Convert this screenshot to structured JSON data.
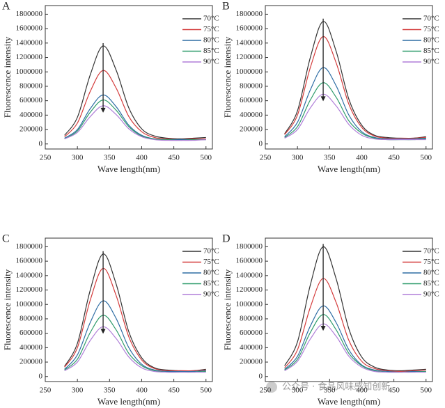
{
  "chart_data": [
    {
      "type": "line",
      "label": "A",
      "xlabel": "Wave length(nm)",
      "ylabel": "Fluorescence intensity",
      "x": [
        280,
        300,
        320,
        340,
        360,
        380,
        400,
        420,
        440,
        460,
        480,
        500
      ],
      "xlim": [
        250,
        510
      ],
      "xticks": [
        250,
        300,
        350,
        400,
        450,
        500
      ],
      "ylim": [
        -70000,
        1920000
      ],
      "yticks": [
        0,
        200000,
        400000,
        600000,
        800000,
        1000000,
        1200000,
        1400000,
        1600000,
        1800000
      ],
      "series": [
        {
          "name": "70°C",
          "color": "#333333",
          "values": [
            120000,
            370000,
            960000,
            1360000,
            1030000,
            500000,
            210000,
            110000,
            80000,
            70000,
            80000,
            90000
          ]
        },
        {
          "name": "75°C",
          "color": "#d43c3c",
          "values": [
            100000,
            290000,
            730000,
            1020000,
            780000,
            380000,
            170000,
            90000,
            70000,
            60000,
            70000,
            70000
          ]
        },
        {
          "name": "80°C",
          "color": "#2e6da4",
          "values": [
            80000,
            200000,
            490000,
            680000,
            520000,
            260000,
            120000,
            70000,
            60000,
            60000,
            60000,
            60000
          ]
        },
        {
          "name": "85°C",
          "color": "#2e9b6b",
          "values": [
            70000,
            180000,
            440000,
            610000,
            470000,
            240000,
            110000,
            70000,
            60000,
            50000,
            60000,
            60000
          ]
        },
        {
          "name": "90°C",
          "color": "#b07fd8",
          "values": [
            70000,
            160000,
            380000,
            530000,
            410000,
            210000,
            100000,
            60000,
            50000,
            50000,
            50000,
            60000
          ]
        }
      ]
    },
    {
      "type": "line",
      "label": "B",
      "xlabel": "Wave length(nm)",
      "ylabel": "Fluorescence intensity",
      "x": [
        280,
        300,
        320,
        340,
        360,
        380,
        400,
        420,
        440,
        460,
        480,
        500
      ],
      "xlim": [
        250,
        510
      ],
      "xticks": [
        250,
        300,
        350,
        400,
        450,
        500
      ],
      "ylim": [
        -70000,
        1920000
      ],
      "yticks": [
        0,
        200000,
        400000,
        600000,
        800000,
        1000000,
        1200000,
        1400000,
        1600000,
        1800000
      ],
      "series": [
        {
          "name": "70°C",
          "color": "#333333",
          "values": [
            140000,
            460000,
            1200000,
            1700000,
            1290000,
            620000,
            260000,
            120000,
            90000,
            80000,
            80000,
            100000
          ]
        },
        {
          "name": "75°C",
          "color": "#d43c3c",
          "values": [
            130000,
            400000,
            1060000,
            1490000,
            1130000,
            550000,
            230000,
            110000,
            80000,
            80000,
            80000,
            90000
          ]
        },
        {
          "name": "80°C",
          "color": "#2e6da4",
          "values": [
            100000,
            300000,
            750000,
            1060000,
            810000,
            400000,
            170000,
            90000,
            70000,
            70000,
            70000,
            80000
          ]
        },
        {
          "name": "85°C",
          "color": "#2e9b6b",
          "values": [
            90000,
            240000,
            610000,
            850000,
            650000,
            320000,
            150000,
            80000,
            60000,
            60000,
            60000,
            70000
          ]
        },
        {
          "name": "90°C",
          "color": "#b07fd8",
          "values": [
            80000,
            200000,
            500000,
            690000,
            530000,
            270000,
            120000,
            70000,
            60000,
            60000,
            60000,
            60000
          ]
        }
      ]
    },
    {
      "type": "line",
      "label": "C",
      "xlabel": "Wave length(nm)",
      "ylabel": "Fluorescence intensity",
      "x": [
        280,
        300,
        320,
        340,
        360,
        380,
        400,
        420,
        440,
        460,
        480,
        500
      ],
      "xlim": [
        250,
        510
      ],
      "xticks": [
        250,
        300,
        350,
        400,
        450,
        500
      ],
      "ylim": [
        -70000,
        1920000
      ],
      "yticks": [
        0,
        200000,
        400000,
        600000,
        800000,
        1000000,
        1200000,
        1400000,
        1600000,
        1800000
      ],
      "series": [
        {
          "name": "70°C",
          "color": "#333333",
          "values": [
            140000,
            460000,
            1200000,
            1700000,
            1290000,
            620000,
            260000,
            120000,
            90000,
            80000,
            80000,
            100000
          ]
        },
        {
          "name": "75°C",
          "color": "#d43c3c",
          "values": [
            130000,
            400000,
            1060000,
            1500000,
            1130000,
            550000,
            230000,
            110000,
            80000,
            80000,
            80000,
            90000
          ]
        },
        {
          "name": "80°C",
          "color": "#2e6da4",
          "values": [
            100000,
            300000,
            750000,
            1050000,
            810000,
            400000,
            170000,
            90000,
            70000,
            70000,
            70000,
            80000
          ]
        },
        {
          "name": "85°C",
          "color": "#2e9b6b",
          "values": [
            90000,
            240000,
            610000,
            850000,
            650000,
            320000,
            150000,
            80000,
            60000,
            60000,
            60000,
            70000
          ]
        },
        {
          "name": "90°C",
          "color": "#b07fd8",
          "values": [
            80000,
            200000,
            500000,
            690000,
            530000,
            270000,
            120000,
            70000,
            60000,
            60000,
            60000,
            60000
          ]
        }
      ]
    },
    {
      "type": "line",
      "label": "D",
      "xlabel": "Wave length(nm)",
      "ylabel": "Fluorescence intensity",
      "x": [
        280,
        300,
        320,
        340,
        360,
        380,
        400,
        420,
        440,
        460,
        480,
        500
      ],
      "xlim": [
        250,
        510
      ],
      "xticks": [
        250,
        300,
        350,
        400,
        450,
        500
      ],
      "ylim": [
        -70000,
        1920000
      ],
      "yticks": [
        0,
        200000,
        400000,
        600000,
        800000,
        1000000,
        1200000,
        1400000,
        1600000,
        1800000
      ],
      "series": [
        {
          "name": "70°C",
          "color": "#333333",
          "values": [
            150000,
            480000,
            1270000,
            1800000,
            1360000,
            660000,
            270000,
            130000,
            90000,
            80000,
            90000,
            100000
          ]
        },
        {
          "name": "75°C",
          "color": "#d43c3c",
          "values": [
            120000,
            370000,
            960000,
            1360000,
            1030000,
            500000,
            210000,
            110000,
            80000,
            70000,
            80000,
            90000
          ]
        },
        {
          "name": "80°C",
          "color": "#2e6da4",
          "values": [
            100000,
            280000,
            700000,
            980000,
            750000,
            370000,
            160000,
            90000,
            70000,
            60000,
            70000,
            70000
          ]
        },
        {
          "name": "85°C",
          "color": "#2e9b6b",
          "values": [
            90000,
            240000,
            610000,
            860000,
            650000,
            320000,
            150000,
            80000,
            60000,
            60000,
            60000,
            70000
          ]
        },
        {
          "name": "90°C",
          "color": "#b07fd8",
          "values": [
            80000,
            210000,
            520000,
            730000,
            560000,
            280000,
            130000,
            70000,
            60000,
            60000,
            60000,
            60000
          ]
        }
      ]
    }
  ],
  "watermark": "公众号 · 食品风味感知创新"
}
